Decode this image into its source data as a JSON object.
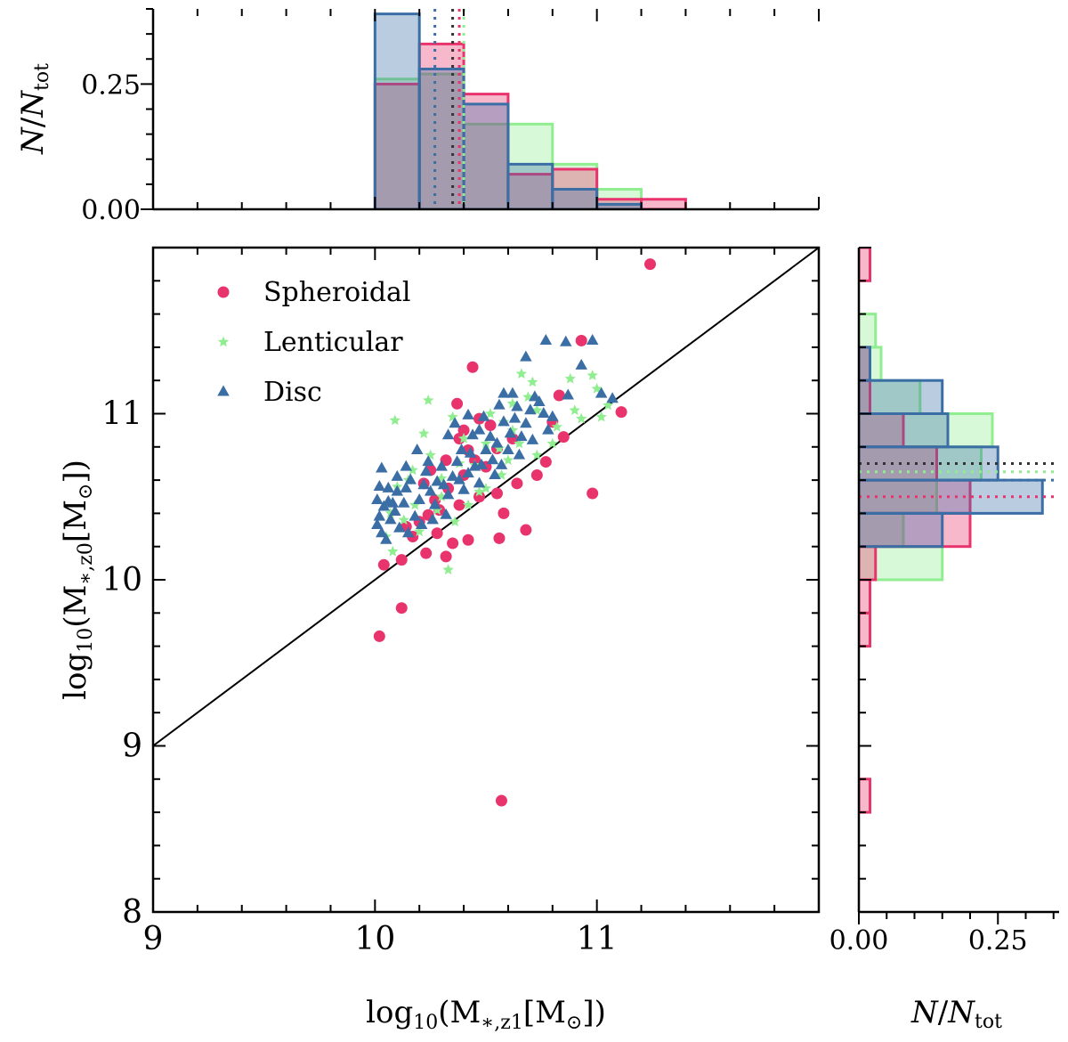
{
  "chart_data": {
    "type": "scatter",
    "colors": {
      "spheroidal": "#e8336d",
      "lenticular": "#90ee90",
      "disc": "#3a6ea5",
      "overall": "#333333"
    },
    "scatter": {
      "xlabel": {
        "base": "log",
        "sub": "10",
        "paren_open": "(M",
        "sub2": "∗,z1",
        "bracket": "[M",
        "sun": "⊙",
        "close": "])"
      },
      "ylabel": {
        "base": "log",
        "sub": "10",
        "paren_open": "(M",
        "sub2": "∗,z0",
        "bracket": "[M",
        "sun": "⊙",
        "close": "])"
      },
      "xlim": [
        9,
        12
      ],
      "ylim": [
        8,
        12
      ],
      "xticks": [
        {
          "v": 9,
          "label": "9"
        },
        {
          "v": 10,
          "label": "10"
        },
        {
          "v": 11,
          "label": "11"
        }
      ],
      "yticks": [
        {
          "v": 8,
          "label": "8"
        },
        {
          "v": 9,
          "label": "9"
        },
        {
          "v": 10,
          "label": "10"
        },
        {
          "v": 11,
          "label": "11"
        }
      ],
      "one_to_one_line": [
        [
          9,
          9
        ],
        [
          12,
          12
        ]
      ],
      "legend": [
        {
          "key": "spheroidal",
          "label": "Spheroidal",
          "marker": "circle"
        },
        {
          "key": "lenticular",
          "label": "Lenticular",
          "marker": "star"
        },
        {
          "key": "disc",
          "label": "Disc",
          "marker": "triangle"
        }
      ],
      "series": [
        {
          "name": "Spheroidal",
          "key": "spheroidal",
          "marker": "circle",
          "points": [
            [
              10.02,
              9.66
            ],
            [
              10.04,
              10.09
            ],
            [
              10.12,
              9.83
            ],
            [
              10.57,
              8.67
            ],
            [
              11.24,
              11.9
            ],
            [
              10.93,
              11.44
            ],
            [
              11.11,
              11.01
            ],
            [
              10.98,
              10.52
            ],
            [
              10.44,
              11.28
            ],
            [
              10.37,
              11.06
            ],
            [
              10.47,
              10.97
            ],
            [
              10.52,
              10.93
            ],
            [
              10.83,
              11.11
            ],
            [
              10.85,
              10.86
            ],
            [
              10.38,
              10.85
            ],
            [
              10.42,
              10.78
            ],
            [
              10.45,
              10.72
            ],
            [
              10.32,
              10.72
            ],
            [
              10.25,
              10.66
            ],
            [
              10.22,
              10.58
            ],
            [
              10.33,
              10.55
            ],
            [
              10.38,
              10.45
            ],
            [
              10.29,
              10.42
            ],
            [
              10.24,
              10.39
            ],
            [
              10.2,
              10.35
            ],
            [
              10.14,
              10.32
            ],
            [
              10.17,
              10.26
            ],
            [
              10.28,
              10.28
            ],
            [
              10.35,
              10.22
            ],
            [
              10.42,
              10.24
            ],
            [
              10.32,
              10.14
            ],
            [
              10.23,
              10.16
            ],
            [
              10.55,
              10.52
            ],
            [
              10.58,
              10.4
            ],
            [
              10.64,
              10.58
            ],
            [
              10.73,
              10.63
            ],
            [
              10.77,
              10.71
            ],
            [
              10.62,
              10.85
            ],
            [
              10.55,
              10.79
            ],
            [
              10.5,
              10.68
            ],
            [
              10.4,
              10.63
            ],
            [
              10.27,
              10.48
            ],
            [
              10.56,
              10.25
            ],
            [
              10.68,
              10.3
            ],
            [
              10.12,
              10.12
            ],
            [
              10.47,
              10.5
            ],
            [
              10.8,
              10.95
            ],
            [
              10.4,
              10.9
            ]
          ]
        },
        {
          "name": "Lenticular",
          "key": "lenticular",
          "marker": "star",
          "points": [
            [
              10.09,
              10.96
            ],
            [
              10.24,
              11.08
            ],
            [
              10.35,
              10.98
            ],
            [
              10.17,
              10.66
            ],
            [
              10.1,
              10.56
            ],
            [
              10.22,
              10.88
            ],
            [
              10.3,
              10.61
            ],
            [
              10.05,
              10.26
            ],
            [
              10.08,
              10.17
            ],
            [
              10.2,
              10.29
            ],
            [
              10.33,
              10.06
            ],
            [
              10.45,
              10.69
            ],
            [
              10.5,
              10.55
            ],
            [
              10.56,
              10.79
            ],
            [
              10.62,
              11.06
            ],
            [
              10.66,
              11.24
            ],
            [
              10.71,
              11.19
            ],
            [
              10.69,
              11.1
            ],
            [
              10.73,
              11.02
            ],
            [
              10.82,
              10.92
            ],
            [
              10.88,
              11.21
            ],
            [
              10.98,
              11.23
            ],
            [
              11.0,
              11.15
            ],
            [
              11.05,
              11.05
            ],
            [
              11.02,
              10.98
            ],
            [
              10.93,
              10.97
            ],
            [
              10.9,
              11.02
            ],
            [
              10.8,
              10.82
            ],
            [
              10.73,
              10.75
            ],
            [
              10.65,
              10.82
            ],
            [
              10.6,
              10.72
            ],
            [
              10.57,
              10.63
            ],
            [
              10.47,
              10.53
            ],
            [
              10.42,
              10.45
            ],
            [
              10.36,
              10.35
            ],
            [
              10.28,
              10.42
            ],
            [
              10.18,
              10.45
            ],
            [
              10.15,
              10.6
            ],
            [
              10.25,
              10.75
            ],
            [
              10.4,
              10.85
            ],
            [
              10.52,
              11.0
            ],
            [
              10.58,
              10.95
            ],
            [
              10.38,
              10.7
            ],
            [
              10.3,
              10.5
            ],
            [
              10.13,
              10.36
            ],
            [
              10.07,
              10.4
            ],
            [
              10.5,
              10.82
            ],
            [
              10.62,
              10.9
            ]
          ]
        },
        {
          "name": "Disc",
          "key": "disc",
          "marker": "triangle",
          "points": [
            [
              10.03,
              10.67
            ],
            [
              10.02,
              10.56
            ],
            [
              10.01,
              10.48
            ],
            [
              10.04,
              10.44
            ],
            [
              10.02,
              10.38
            ],
            [
              10.01,
              10.33
            ],
            [
              10.03,
              10.28
            ],
            [
              10.05,
              10.24
            ],
            [
              10.07,
              10.36
            ],
            [
              10.08,
              10.46
            ],
            [
              10.06,
              10.55
            ],
            [
              10.1,
              10.62
            ],
            [
              10.09,
              10.41
            ],
            [
              10.11,
              10.31
            ],
            [
              10.13,
              10.46
            ],
            [
              10.14,
              10.55
            ],
            [
              10.16,
              10.6
            ],
            [
              10.18,
              10.38
            ],
            [
              10.2,
              10.48
            ],
            [
              10.22,
              10.57
            ],
            [
              10.23,
              10.65
            ],
            [
              10.25,
              10.53
            ],
            [
              10.27,
              10.45
            ],
            [
              10.28,
              10.59
            ],
            [
              10.3,
              10.68
            ],
            [
              10.31,
              10.57
            ],
            [
              10.33,
              10.51
            ],
            [
              10.35,
              10.62
            ],
            [
              10.37,
              10.71
            ],
            [
              10.38,
              10.6
            ],
            [
              10.4,
              10.54
            ],
            [
              10.42,
              10.64
            ],
            [
              10.43,
              10.76
            ],
            [
              10.45,
              10.68
            ],
            [
              10.47,
              10.58
            ],
            [
              10.48,
              10.69
            ],
            [
              10.5,
              10.78
            ],
            [
              10.52,
              10.86
            ],
            [
              10.53,
              10.72
            ],
            [
              10.55,
              10.82
            ],
            [
              10.57,
              10.69
            ],
            [
              10.58,
              10.95
            ],
            [
              10.6,
              10.78
            ],
            [
              10.61,
              10.88
            ],
            [
              10.63,
              10.97
            ],
            [
              10.64,
              11.04
            ],
            [
              10.62,
              11.12
            ],
            [
              10.58,
              11.12
            ],
            [
              10.66,
              10.86
            ],
            [
              10.68,
              10.94
            ],
            [
              10.7,
              11.02
            ],
            [
              10.72,
              11.1
            ],
            [
              10.74,
              11.07
            ],
            [
              10.76,
              11.0
            ],
            [
              10.78,
              10.9
            ],
            [
              10.8,
              10.98
            ],
            [
              10.87,
              11.11
            ],
            [
              11.02,
              11.12
            ],
            [
              11.07,
              11.09
            ],
            [
              10.93,
              11.29
            ],
            [
              10.98,
              11.44
            ],
            [
              10.77,
              11.44
            ],
            [
              10.68,
              11.34
            ],
            [
              10.86,
              11.43
            ],
            [
              10.33,
              10.87
            ],
            [
              10.36,
              10.94
            ],
            [
              10.42,
              10.99
            ],
            [
              10.47,
              10.9
            ],
            [
              10.39,
              10.78
            ],
            [
              10.24,
              10.71
            ],
            [
              10.19,
              10.78
            ],
            [
              10.14,
              10.68
            ],
            [
              10.06,
              10.47
            ],
            [
              10.1,
              10.53
            ],
            [
              10.15,
              10.28
            ],
            [
              10.21,
              10.33
            ],
            [
              10.26,
              10.36
            ],
            [
              10.32,
              10.39
            ],
            [
              10.44,
              10.87
            ],
            [
              10.54,
              10.63
            ],
            [
              10.65,
              10.75
            ],
            [
              10.71,
              10.84
            ],
            [
              10.49,
              10.98
            ],
            [
              10.56,
              11.05
            ]
          ]
        }
      ]
    },
    "top_hist": {
      "ylabel": {
        "n": "N",
        "slash": "/",
        "n2": "N",
        "sub": "tot"
      },
      "ylim": [
        0,
        0.4
      ],
      "yticks": [
        {
          "v": 0.0,
          "label": "0.00"
        },
        {
          "v": 0.25,
          "label": "0.25"
        }
      ],
      "bin_edges": [
        10.0,
        10.2,
        10.4,
        10.6,
        10.8,
        11.0,
        11.2,
        11.4
      ],
      "series": [
        {
          "name": "Spheroidal",
          "key": "spheroidal",
          "counts": [
            0.25,
            0.33,
            0.23,
            0.07,
            0.08,
            0.02,
            0.02
          ]
        },
        {
          "name": "Lenticular",
          "key": "lenticular",
          "counts": [
            0.26,
            0.27,
            0.17,
            0.17,
            0.09,
            0.04,
            0.0
          ]
        },
        {
          "name": "Disc",
          "key": "disc",
          "counts": [
            0.39,
            0.28,
            0.21,
            0.09,
            0.04,
            0.01,
            0.0
          ]
        }
      ],
      "medians": [
        {
          "key": "disc",
          "value": 10.27
        },
        {
          "key": "overall",
          "value": 10.35
        },
        {
          "key": "spheroidal",
          "value": 10.38
        },
        {
          "key": "lenticular",
          "value": 10.4
        }
      ]
    },
    "right_hist": {
      "xlabel": {
        "n": "N",
        "slash": "/",
        "n2": "N",
        "sub": "tot"
      },
      "xlim": [
        0,
        0.36
      ],
      "xticks": [
        {
          "v": 0.0,
          "label": "0.00"
        },
        {
          "v": 0.25,
          "label": "0.25"
        }
      ],
      "bin_edges": [
        8.6,
        8.8,
        9.0,
        9.2,
        9.4,
        9.6,
        9.8,
        10.0,
        10.2,
        10.4,
        10.6,
        10.8,
        11.0,
        11.2,
        11.4,
        11.6,
        11.8,
        12.0
      ],
      "series": [
        {
          "name": "Spheroidal",
          "key": "spheroidal",
          "counts": [
            0.02,
            0.0,
            0.0,
            0.0,
            0.0,
            0.02,
            0.02,
            0.03,
            0.2,
            0.2,
            0.14,
            0.08,
            0.02,
            0.02,
            0.0,
            0.0,
            0.02
          ]
        },
        {
          "name": "Lenticular",
          "key": "lenticular",
          "counts": [
            0.0,
            0.0,
            0.0,
            0.0,
            0.0,
            0.0,
            0.0,
            0.15,
            0.08,
            0.14,
            0.22,
            0.24,
            0.11,
            0.04,
            0.03,
            0.0,
            0.0
          ]
        },
        {
          "name": "Disc",
          "key": "disc",
          "counts": [
            0.0,
            0.0,
            0.0,
            0.0,
            0.0,
            0.0,
            0.0,
            0.0,
            0.15,
            0.33,
            0.25,
            0.16,
            0.15,
            0.02,
            0.0,
            0.0,
            0.0
          ]
        }
      ],
      "medians": [
        {
          "key": "spheroidal",
          "value": 10.5
        },
        {
          "key": "disc",
          "value": 10.6
        },
        {
          "key": "lenticular",
          "value": 10.65
        },
        {
          "key": "overall",
          "value": 10.7
        }
      ]
    }
  }
}
